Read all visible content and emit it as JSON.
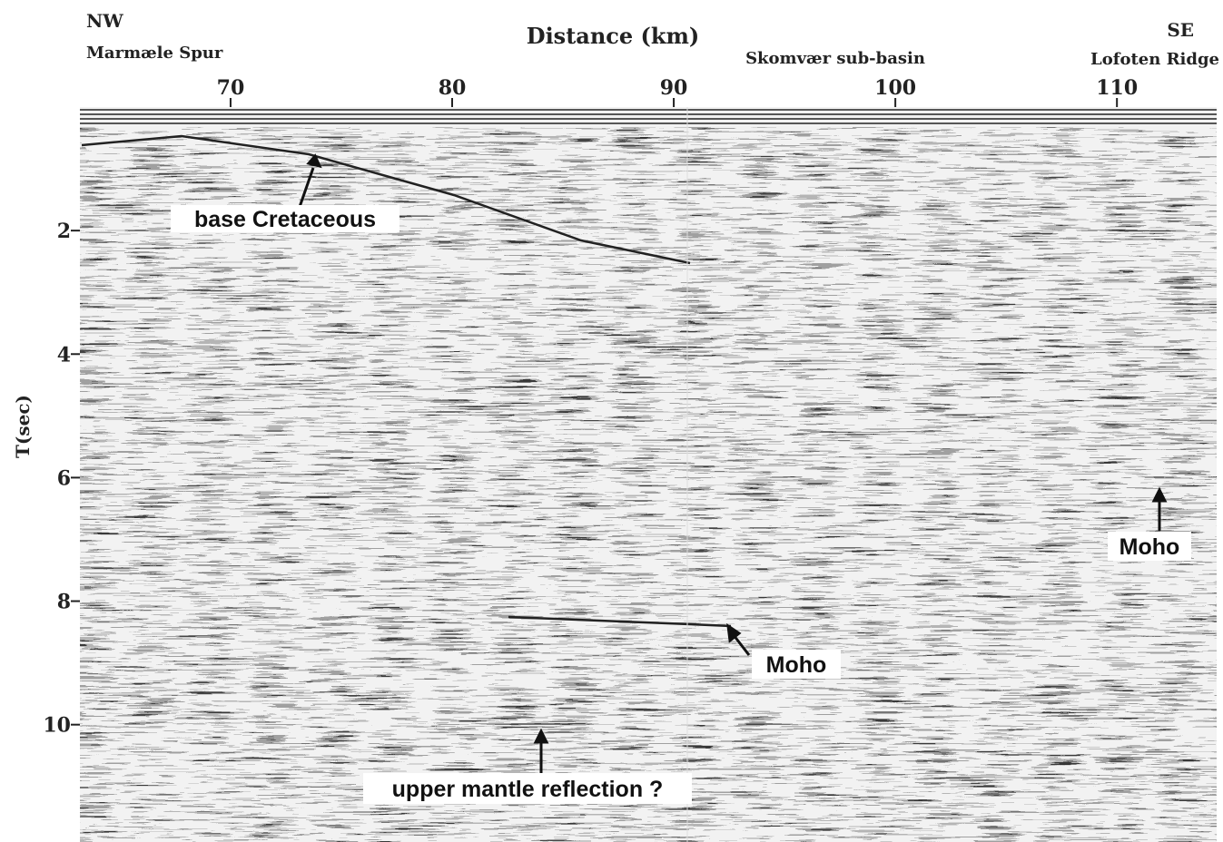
{
  "title": "Distance (km)",
  "places": {
    "nw": "NW",
    "nw_place": "Marmæle Spur",
    "center_place": "Skomvær sub-basin",
    "se": "SE",
    "se_place": "Lofoten Ridge"
  },
  "x_axis": {
    "xlim": [
      63.2,
      114.5
    ],
    "xticks": [
      70,
      80,
      90,
      100,
      110
    ]
  },
  "y_axis": {
    "label": "T(sec)",
    "ylim": [
      0,
      11.9
    ],
    "yticks": [
      2,
      4,
      6,
      8,
      10
    ]
  },
  "annotations": [
    "base Cretaceous",
    "Moho",
    "Moho",
    "upper mantle reflection ?"
  ]
}
